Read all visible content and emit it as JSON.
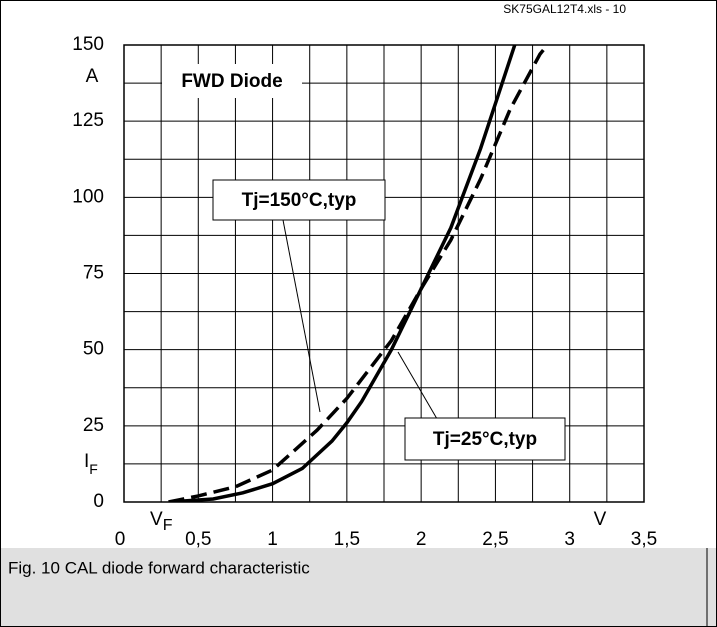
{
  "chart_data": {
    "type": "line",
    "source": "SK75GAL12T4.xls - 10",
    "caption": "Fig. 10 CAL diode forward characteristic",
    "ylabel_unit": "A",
    "ylabel": {
      "main": "I",
      "sub": "F"
    },
    "xlabel": {
      "main": "V",
      "sub": "F"
    },
    "xlabel_unit": "V",
    "annotations": [
      "FWD Diode",
      "Tj=150°C,typ",
      "Tj=25°C,typ"
    ],
    "xlim": [
      0,
      3.5
    ],
    "ylim": [
      0,
      150
    ],
    "xticks": [
      0,
      {
        "value": 0.5,
        "label": "0,5"
      },
      1,
      {
        "value": 1.5,
        "label": "1,5"
      },
      2,
      {
        "value": 2.5,
        "label": "2,5"
      },
      3,
      {
        "value": 3.5,
        "label": "3,5"
      }
    ],
    "yticks": [
      0,
      25,
      50,
      75,
      100,
      125,
      150
    ],
    "grid": true,
    "minor_grid": true,
    "series": [
      {
        "name": "Tj=25°C,typ",
        "color": "#000000",
        "dashed": false,
        "x": [
          0.3,
          0.6,
          0.8,
          1.0,
          1.2,
          1.4,
          1.5,
          1.6,
          1.8,
          2.0,
          2.2,
          2.4,
          2.63
        ],
        "values": [
          0,
          1,
          3,
          6,
          11,
          20,
          26,
          33,
          50,
          70,
          90,
          116,
          150
        ]
      },
      {
        "name": "Tj=150°C,typ",
        "color": "#000000",
        "dashed": true,
        "x": [
          0.3,
          0.5,
          0.75,
          1.0,
          1.3,
          1.5,
          1.8,
          2.0,
          2.2,
          2.4,
          2.6,
          2.8,
          2.85
        ],
        "values": [
          0,
          2,
          5,
          10.5,
          23.6,
          34,
          53,
          70,
          86,
          106,
          129,
          147,
          150
        ]
      }
    ]
  }
}
